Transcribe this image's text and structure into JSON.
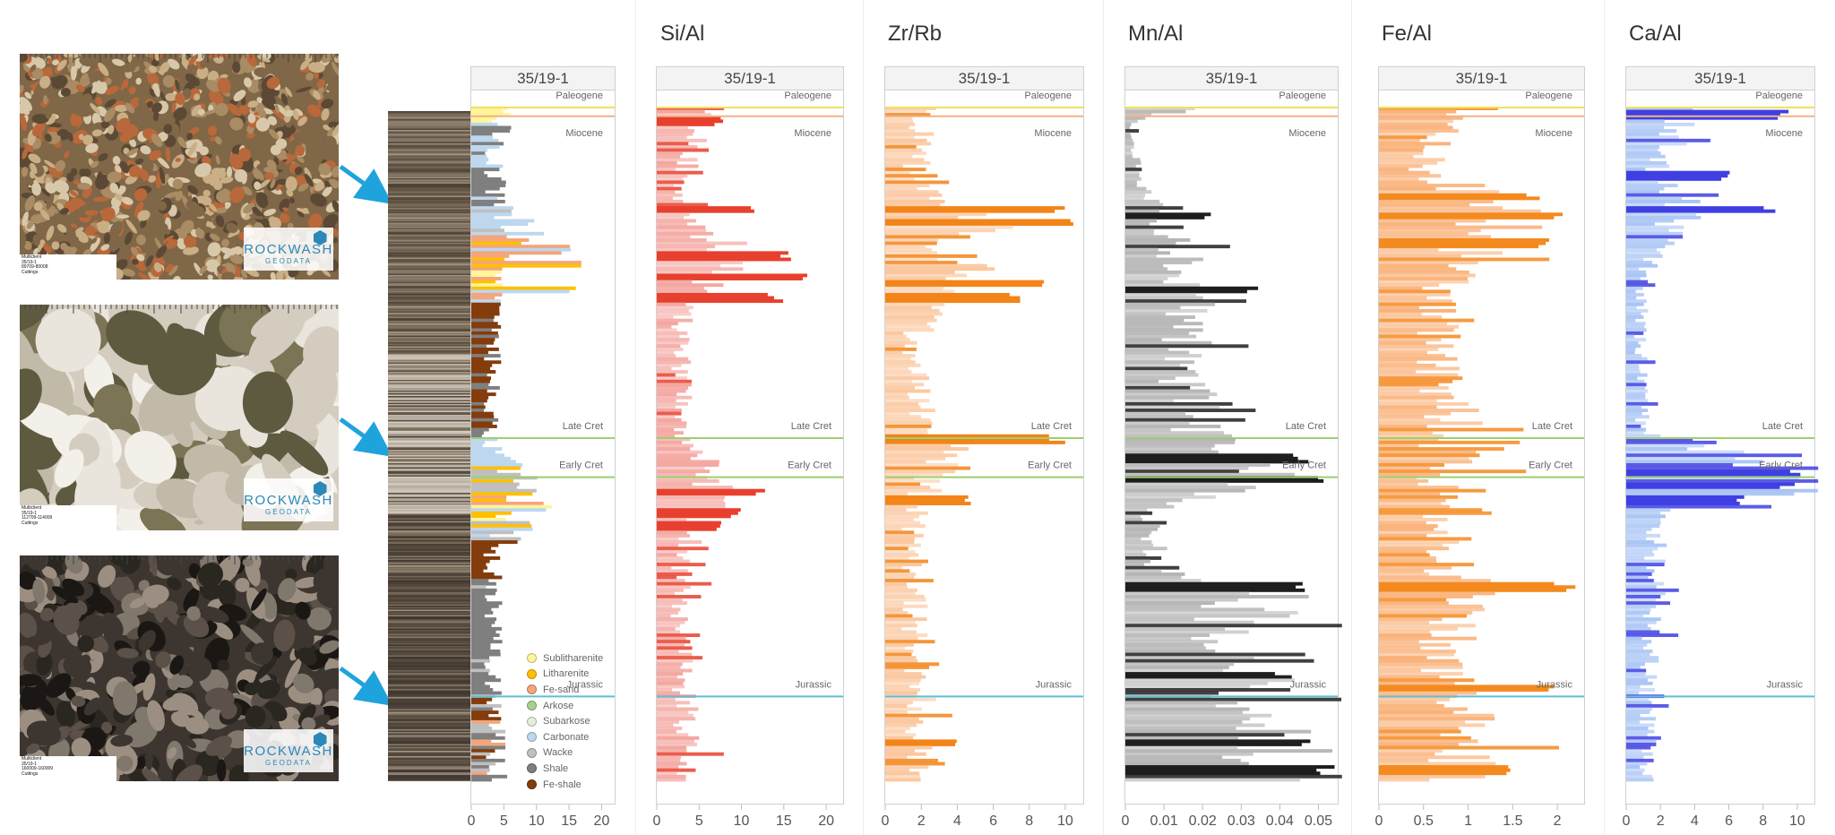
{
  "well": "35/19-1",
  "photos": [
    {
      "caption": "Multiclient\n35/19-1\n89709-80008\nCuttings",
      "palette": [
        "#a98b64",
        "#7f6747",
        "#c9ae86",
        "#5b4935",
        "#b8683a",
        "#d8c8aa"
      ],
      "grain": "fine"
    },
    {
      "caption": "Multiclient\n35/19-1\n112709-114009\nCuttings",
      "palette": [
        "#e9e5dc",
        "#d4cdbf",
        "#5e5a40",
        "#7b7455",
        "#c2baa8",
        "#f3f0ea"
      ],
      "grain": "coarse"
    },
    {
      "caption": "Multiclient\n35/19-1\n160009-160009\nCuttings",
      "palette": [
        "#2a2620",
        "#3d3630",
        "#5b5148",
        "#80776d",
        "#1a1714",
        "#9c8f82"
      ],
      "grain": "medium"
    }
  ],
  "logo": {
    "brand": "ROCKWASH",
    "sub": "GEODATA",
    "icon": "hexagon-logo-icon"
  },
  "formations": [
    {
      "name": "Paleogene",
      "depth": 0.0,
      "color": "#f2e15c"
    },
    {
      "name": "Miocene",
      "depth": 0.013,
      "color": "#f4b183"
    },
    {
      "name": "Late Cret",
      "depth": 0.49,
      "color": "#9ccf6d"
    },
    {
      "name": "Early Cret",
      "depth": 0.548,
      "color": "#9ccf6d"
    },
    {
      "name": "Jurassic",
      "depth": 0.873,
      "color": "#5bc0d8"
    }
  ],
  "legend": [
    {
      "label": "Sublitharenite",
      "color": "#fff59a"
    },
    {
      "label": "Litharenite",
      "color": "#ffc000"
    },
    {
      "label": "Fe-sand",
      "color": "#f4a57c"
    },
    {
      "label": "Arkose",
      "color": "#a9d18e"
    },
    {
      "label": "Subarkose",
      "color": "#e2efda"
    },
    {
      "label": "Carbonate",
      "color": "#bdd7ee"
    },
    {
      "label": "Wacke",
      "color": "#bfbfbf"
    },
    {
      "label": "Shale",
      "color": "#7f7f7f"
    },
    {
      "label": "Fe-shale",
      "color": "#843c0c"
    }
  ],
  "chart_data": [
    {
      "type": "bar",
      "name": "lithology",
      "title": "",
      "track": "35/19-1",
      "xlim": [
        0,
        22
      ],
      "xticks": [
        0,
        5,
        10,
        15,
        20
      ],
      "color": "#7f7f7f",
      "profile": [
        [
          0,
          6
        ],
        [
          0.03,
          4.5
        ],
        [
          0.08,
          4
        ],
        [
          0.14,
          5
        ],
        [
          0.2,
          12
        ],
        [
          0.24,
          8
        ],
        [
          0.28,
          4
        ],
        [
          0.35,
          4
        ],
        [
          0.45,
          3.5
        ],
        [
          0.5,
          3.5
        ],
        [
          0.56,
          10
        ],
        [
          0.6,
          7
        ],
        [
          0.66,
          4
        ],
        [
          0.75,
          4
        ],
        [
          0.85,
          4
        ],
        [
          0.9,
          4.5
        ],
        [
          1.0,
          5
        ]
      ],
      "spikes": [
        [
          0.03,
          6.5
        ],
        [
          0.15,
          7
        ],
        [
          0.17,
          10
        ],
        [
          0.21,
          16
        ],
        [
          0.23,
          17
        ],
        [
          0.27,
          17
        ],
        [
          0.59,
          13
        ],
        [
          0.62,
          10
        ],
        [
          0.64,
          8
        ]
      ]
    },
    {
      "type": "bar",
      "name": "Si/Al",
      "title": "Si/Al",
      "track": "35/19-1",
      "xlim": [
        0,
        22
      ],
      "xticks": [
        0,
        5,
        10,
        15,
        20
      ],
      "color": "#f4a6a0",
      "spike_color": "#e8402e",
      "profile": [
        [
          0,
          7
        ],
        [
          0.04,
          5.5
        ],
        [
          0.08,
          4.5
        ],
        [
          0.12,
          3.5
        ],
        [
          0.17,
          4
        ],
        [
          0.2,
          9
        ],
        [
          0.24,
          10
        ],
        [
          0.28,
          4
        ],
        [
          0.35,
          3.5
        ],
        [
          0.48,
          3.5
        ],
        [
          0.56,
          9
        ],
        [
          0.6,
          7
        ],
        [
          0.66,
          3.5
        ],
        [
          0.8,
          3.5
        ],
        [
          0.88,
          4
        ],
        [
          1.0,
          5
        ]
      ],
      "spikes": [
        [
          0.02,
          8
        ],
        [
          0.15,
          12
        ],
        [
          0.22,
          17
        ],
        [
          0.25,
          18
        ],
        [
          0.28,
          15
        ],
        [
          0.57,
          13
        ],
        [
          0.6,
          10
        ],
        [
          0.62,
          8
        ]
      ]
    },
    {
      "type": "bar",
      "name": "Zr/Rb",
      "title": "Zr/Rb",
      "track": "35/19-1",
      "xlim": [
        0,
        11
      ],
      "xticks": [
        0,
        2,
        4,
        6,
        8,
        10
      ],
      "color": "#fbc79e",
      "spike_color": "#f28418",
      "profile": [
        [
          0,
          3
        ],
        [
          0.05,
          2.5
        ],
        [
          0.1,
          2
        ],
        [
          0.14,
          3
        ],
        [
          0.17,
          8
        ],
        [
          0.2,
          4
        ],
        [
          0.25,
          5.5
        ],
        [
          0.28,
          3
        ],
        [
          0.35,
          2
        ],
        [
          0.48,
          2.5
        ],
        [
          0.5,
          4
        ],
        [
          0.56,
          3
        ],
        [
          0.6,
          2
        ],
        [
          0.8,
          2
        ],
        [
          0.9,
          2.5
        ],
        [
          1.0,
          2
        ]
      ],
      "spikes": [
        [
          0.15,
          10
        ],
        [
          0.17,
          10.5
        ],
        [
          0.26,
          9
        ],
        [
          0.28,
          7.5
        ],
        [
          0.49,
          10.5
        ],
        [
          0.58,
          5
        ],
        [
          0.94,
          4
        ]
      ]
    },
    {
      "type": "bar",
      "name": "Mn/Al",
      "title": "Mn/Al",
      "track": "35/19-1",
      "xlim": [
        0,
        0.055
      ],
      "xticks": [
        0,
        0.01,
        0.02,
        0.03,
        0.04,
        0.05
      ],
      "color": "#b5b5b5",
      "spike_color": "#1e1e1e",
      "profile": [
        [
          0,
          0.019
        ],
        [
          0.02,
          0.002
        ],
        [
          0.1,
          0.004
        ],
        [
          0.15,
          0.012
        ],
        [
          0.2,
          0.016
        ],
        [
          0.3,
          0.02
        ],
        [
          0.4,
          0.018
        ],
        [
          0.48,
          0.025
        ],
        [
          0.55,
          0.04
        ],
        [
          0.6,
          0.008
        ],
        [
          0.68,
          0.01
        ],
        [
          0.72,
          0.042
        ],
        [
          0.8,
          0.03
        ],
        [
          0.86,
          0.04
        ],
        [
          0.92,
          0.045
        ],
        [
          1.0,
          0.05
        ]
      ],
      "spikes": [
        [
          0.16,
          0.023
        ],
        [
          0.27,
          0.035
        ],
        [
          0.52,
          0.048
        ],
        [
          0.55,
          0.052
        ],
        [
          0.71,
          0.048
        ],
        [
          0.84,
          0.045
        ],
        [
          0.94,
          0.052
        ],
        [
          0.98,
          0.055
        ]
      ]
    },
    {
      "type": "bar",
      "name": "Fe/Al",
      "title": "Fe/Al",
      "track": "35/19-1",
      "xlim": [
        0,
        2.3
      ],
      "xticks": [
        0,
        0.5,
        1,
        1.5,
        2
      ],
      "color": "#fab27a",
      "spike_color": "#f48a1e",
      "profile": [
        [
          0,
          1.1
        ],
        [
          0.05,
          0.7
        ],
        [
          0.1,
          0.6
        ],
        [
          0.12,
          1.3
        ],
        [
          0.18,
          1.8
        ],
        [
          0.22,
          1.2
        ],
        [
          0.28,
          0.9
        ],
        [
          0.35,
          0.8
        ],
        [
          0.45,
          1
        ],
        [
          0.55,
          0.9
        ],
        [
          0.65,
          0.8
        ],
        [
          0.72,
          1.2
        ],
        [
          0.8,
          0.9
        ],
        [
          0.9,
          1.1
        ],
        [
          1.0,
          1.2
        ]
      ],
      "spikes": [
        [
          0.13,
          1.9
        ],
        [
          0.16,
          2.1
        ],
        [
          0.2,
          2.0
        ],
        [
          0.71,
          2.3
        ],
        [
          0.86,
          2.2
        ],
        [
          0.98,
          1.5
        ]
      ]
    },
    {
      "type": "bar",
      "name": "Ca/Al",
      "title": "Ca/Al",
      "track": "35/19-1",
      "xlim": [
        0,
        11
      ],
      "xticks": [
        0,
        2,
        4,
        6,
        8,
        10
      ],
      "color": "#a9c4f5",
      "spike_color": "#3f3fe3",
      "profile": [
        [
          0,
          4
        ],
        [
          0.04,
          3.5
        ],
        [
          0.1,
          2
        ],
        [
          0.14,
          5
        ],
        [
          0.18,
          3
        ],
        [
          0.25,
          1.2
        ],
        [
          0.35,
          1
        ],
        [
          0.48,
          1.2
        ],
        [
          0.52,
          9
        ],
        [
          0.57,
          10
        ],
        [
          0.6,
          2
        ],
        [
          0.7,
          2
        ],
        [
          0.8,
          1.8
        ],
        [
          0.88,
          1.5
        ],
        [
          1.0,
          1.5
        ]
      ],
      "spikes": [
        [
          0.01,
          10
        ],
        [
          0.1,
          6.5
        ],
        [
          0.15,
          9
        ],
        [
          0.54,
          11
        ],
        [
          0.56,
          10.5
        ],
        [
          0.58,
          7
        ]
      ]
    }
  ]
}
